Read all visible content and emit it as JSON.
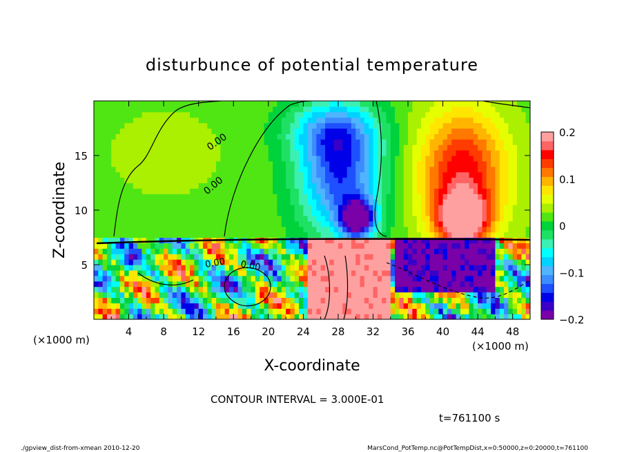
{
  "chart_data": {
    "type": "heatmap",
    "title": "disturbunce of potential temperature",
    "xlabel": "X-coordinate",
    "ylabel": "Z-coordinate",
    "x_unit_left": "(×1000 m)",
    "x_unit_right": "(×1000 m)",
    "xlim": [
      0,
      50
    ],
    "ylim": [
      0,
      20
    ],
    "xticks": [
      4,
      8,
      12,
      16,
      20,
      24,
      28,
      32,
      36,
      40,
      44,
      48
    ],
    "yticks": [
      5,
      10,
      15
    ],
    "colorbar": {
      "range": [
        -0.2,
        0.2
      ],
      "ticks": [
        "0.2",
        "0.1",
        "0",
        "−0.1",
        "−0.2"
      ],
      "tick_values": [
        0.2,
        0.1,
        0,
        -0.1,
        -0.2
      ],
      "colors": [
        "#7a00a8",
        "#3a00c8",
        "#0000e8",
        "#1e50ff",
        "#3c8cff",
        "#50b4ff",
        "#00d2ff",
        "#00ffff",
        "#3cf0b4",
        "#1ee164",
        "#00d23c",
        "#50e614",
        "#aaf000",
        "#e6ff00",
        "#ffe600",
        "#ffb400",
        "#ff7800",
        "#ff3c00",
        "#ff0000",
        "#ff6464",
        "#ffa0a0"
      ]
    },
    "contour_labels": [
      "0.00",
      "0.00",
      "0.00",
      "0.00"
    ],
    "field_sketch": [
      {
        "cx": 28,
        "cz": 13,
        "rx": 5.5,
        "rz": 6.5,
        "value": -0.16
      },
      {
        "cx": 27,
        "cz": 17,
        "rx": 6.0,
        "rz": 3.0,
        "value": -0.08
      },
      {
        "cx": 30,
        "cz": 9,
        "rx": 2.2,
        "rz": 2.0,
        "value": -0.22
      },
      {
        "cx": 42,
        "cz": 13,
        "rx": 6.0,
        "rz": 7.0,
        "value": 0.14
      },
      {
        "cx": 42,
        "cz": 9,
        "rx": 3.0,
        "rz": 2.5,
        "value": 0.22
      },
      {
        "cx": 8,
        "cz": 15,
        "rx": 8.0,
        "rz": 5.0,
        "value": 0.02
      }
    ],
    "footer": {
      "contour_interval": "CONTOUR INTERVAL = 3.000E-01",
      "time": "t=761100 s",
      "left_note": "./gpview_dist-from-xmean  2010-12-20",
      "right_note": "MarsCond_PotTemp.nc@PotTempDist,x=0:50000,z=0:20000,t=761100"
    }
  }
}
